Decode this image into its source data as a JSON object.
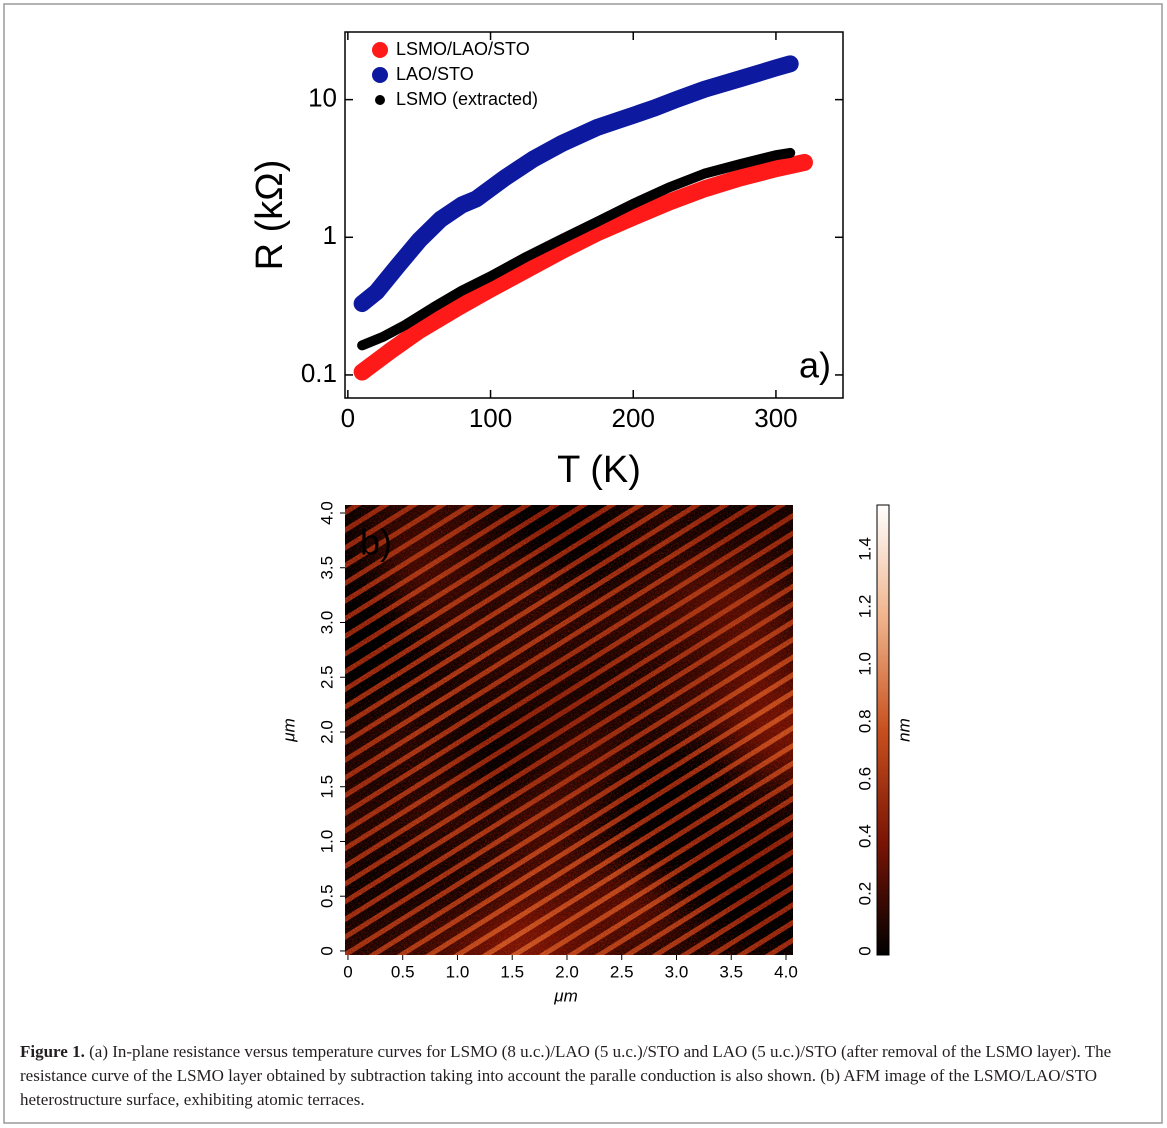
{
  "chart_data": [
    {
      "type": "line",
      "log_y": true,
      "xlabel": "T (K)",
      "ylabel": "R (kΩ)",
      "annotation": "a)",
      "xlim": [
        -2,
        347
      ],
      "ylim": [
        0.068,
        31
      ],
      "xticks": [
        0,
        100,
        200,
        300
      ],
      "yticks": [
        0.1,
        1,
        10
      ],
      "legend": "upper left",
      "series": [
        {
          "name": "LSMO/LAO/STO",
          "color": "#ff1a1a",
          "x": [
            10,
            30,
            50,
            75,
            100,
            125,
            150,
            175,
            200,
            225,
            250,
            275,
            300,
            320
          ],
          "values": [
            0.105,
            0.15,
            0.21,
            0.3,
            0.42,
            0.58,
            0.8,
            1.08,
            1.4,
            1.8,
            2.25,
            2.7,
            3.15,
            3.5
          ]
        },
        {
          "name": "LAO/STO",
          "color": "#0d1aa0",
          "x": [
            10,
            20,
            35,
            50,
            65,
            80,
            90,
            110,
            130,
            150,
            175,
            200,
            215,
            230,
            250,
            275,
            300,
            310
          ],
          "values": [
            0.33,
            0.4,
            0.62,
            0.95,
            1.35,
            1.72,
            1.9,
            2.7,
            3.7,
            4.8,
            6.3,
            7.7,
            8.7,
            10,
            11.9,
            14.2,
            17,
            18.2
          ]
        },
        {
          "name": "LSMO (extracted)",
          "color": "#000000",
          "x": [
            10,
            25,
            40,
            60,
            80,
            100,
            125,
            150,
            175,
            200,
            225,
            250,
            275,
            300,
            310
          ],
          "values": [
            0.164,
            0.19,
            0.23,
            0.31,
            0.41,
            0.52,
            0.72,
            0.97,
            1.3,
            1.75,
            2.3,
            2.9,
            3.4,
            3.95,
            4.1
          ]
        }
      ]
    },
    {
      "type": "heatmap",
      "xlabel": "μm",
      "ylabel": "μm",
      "annotation": "b)",
      "xlim": [
        -0.027,
        4.064
      ],
      "ylim": [
        -0.037,
        4.073
      ],
      "xticks": [
        0,
        0.5,
        {
          "value": 1,
          "label": "1.0"
        },
        1.5,
        {
          "value": 2,
          "label": "2.0"
        },
        2.5,
        {
          "value": 3,
          "label": "3.0"
        },
        3.5,
        {
          "value": 4,
          "label": "4.0"
        }
      ],
      "yticks": [
        0,
        0.5,
        {
          "value": 1,
          "label": "1.0"
        },
        1.5,
        {
          "value": 2,
          "label": "2.0"
        },
        2.5,
        {
          "value": 3,
          "label": "3.0"
        },
        3.5,
        {
          "value": 4,
          "label": "4.0"
        }
      ],
      "colorbar": {
        "label": "nm",
        "lim": [
          -0.014,
          1.553
        ],
        "ticks": [
          0,
          0.2,
          0.4,
          0.6,
          0.8,
          {
            "value": 1,
            "label": "1.0"
          },
          1.2,
          1.4
        ],
        "colors": [
          "#000000",
          "#7a1405",
          "#c8501e",
          "#f0b48c",
          "#ffffff"
        ]
      }
    }
  ],
  "caption": {
    "label": "Figure 1.",
    "text": "(a) In-plane resistance versus temperature curves for LSMO (8 u.c.)/LAO (5 u.c.)/STO and LAO (5 u.c.)/STO (after removal of the LSMO layer). The resistance curve of the LSMO layer obtained by subtraction taking into account the paralle conduction is also shown. (b) AFM image of the LSMO/LAO/STO heterostructure surface, exhibiting atomic terraces."
  }
}
